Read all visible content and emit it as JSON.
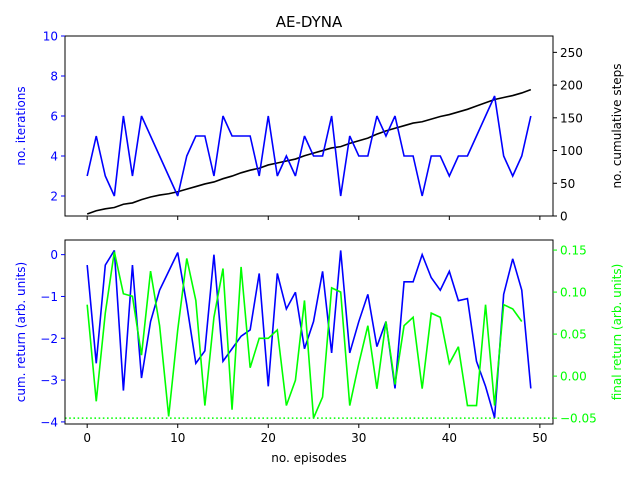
{
  "chart_data": [
    {
      "type": "line",
      "title": "AE-DYNA",
      "xlabel": "",
      "ylabel": "no. iterations",
      "ylabel_right": "no. cumulative steps",
      "xlim": [
        -2.45,
        51.45
      ],
      "ylim": [
        1,
        10
      ],
      "ylim_right": [
        0,
        275
      ],
      "yticks": [
        2,
        4,
        6,
        8,
        10
      ],
      "yticks_right": [
        0,
        50,
        100,
        150,
        200,
        250
      ],
      "grid": false,
      "colors": {
        "left_axis": "#0000ff",
        "right_axis": "#000000"
      },
      "series": [
        {
          "axis": "left",
          "color": "#0000ff",
          "x": [
            0,
            1,
            2,
            3,
            4,
            5,
            6,
            7,
            8,
            9,
            10,
            11,
            12,
            13,
            14,
            15,
            16,
            17,
            18,
            19,
            20,
            21,
            22,
            23,
            24,
            25,
            26,
            27,
            28,
            29,
            30,
            31,
            32,
            33,
            34,
            35,
            36,
            37,
            38,
            39,
            40,
            41,
            42,
            43,
            44,
            45,
            46,
            47,
            48,
            49
          ],
          "values": [
            3,
            5,
            3,
            2,
            6,
            3,
            6,
            5,
            4,
            3,
            2,
            4,
            5,
            5,
            3,
            6,
            5,
            5,
            5,
            3,
            6,
            3,
            4,
            3,
            5,
            4,
            4,
            6,
            2,
            5,
            4,
            4,
            6,
            5,
            6,
            4,
            4,
            2,
            4,
            4,
            3,
            4,
            4,
            5,
            6,
            7,
            4,
            3,
            4,
            6
          ]
        },
        {
          "axis": "right",
          "color": "#000000",
          "x": [
            0,
            1,
            2,
            3,
            4,
            5,
            6,
            7,
            8,
            9,
            10,
            11,
            12,
            13,
            14,
            15,
            16,
            17,
            18,
            19,
            20,
            21,
            22,
            23,
            24,
            25,
            26,
            27,
            28,
            29,
            30,
            31,
            32,
            33,
            34,
            35,
            36,
            37,
            38,
            39,
            40,
            41,
            42,
            43,
            44,
            45,
            46,
            47,
            48,
            49
          ],
          "values": [
            3,
            8,
            11,
            13,
            18,
            20,
            25,
            29,
            32,
            34,
            37,
            41,
            45,
            49,
            52,
            57,
            61,
            66,
            70,
            73,
            78,
            81,
            84,
            87,
            92,
            96,
            100,
            104,
            106,
            111,
            115,
            119,
            125,
            130,
            134,
            138,
            142,
            144,
            148,
            152,
            155,
            159,
            163,
            168,
            173,
            178,
            181,
            184,
            188,
            193
          ]
        }
      ]
    },
    {
      "type": "line",
      "title": "",
      "xlabel": "no. episodes",
      "ylabel": "cum. return (arb. units)",
      "ylabel_right": "final return (arb. units)",
      "xlim": [
        -2.45,
        51.45
      ],
      "xticks": [
        0,
        10,
        20,
        30,
        40,
        50
      ],
      "ylim": [
        -4.05,
        0.35
      ],
      "ylim_right": [
        -0.057,
        0.162
      ],
      "yticks": [
        -4,
        -3,
        -2,
        -1,
        0
      ],
      "yticks_right": [
        -0.05,
        0.0,
        0.05,
        0.1,
        0.15
      ],
      "ytick_labels_right": [
        "−0.05",
        "0.00",
        "0.05",
        "0.10",
        "0.15"
      ],
      "grid": false,
      "colors": {
        "left_axis": "#0000ff",
        "right_axis": "#00ff00"
      },
      "threshold": {
        "axis": "right",
        "value": -0.05,
        "color": "#00ff00",
        "style": "dotted"
      },
      "series": [
        {
          "axis": "left",
          "color": "#0000ff",
          "x": [
            0,
            1,
            2,
            3,
            4,
            5,
            6,
            7,
            8,
            9,
            10,
            11,
            12,
            13,
            14,
            15,
            16,
            17,
            18,
            19,
            20,
            21,
            22,
            23,
            24,
            25,
            26,
            27,
            28,
            29,
            30,
            31,
            32,
            33,
            34,
            35,
            36,
            37,
            38,
            39,
            40,
            41,
            42,
            43,
            44,
            45,
            46,
            47,
            48,
            49
          ],
          "values": [
            -0.25,
            -2.6,
            -0.25,
            0.1,
            -3.25,
            -0.25,
            -2.95,
            -1.6,
            -0.85,
            -0.4,
            0.05,
            -1.2,
            -2.6,
            -2.3,
            0,
            -2.55,
            -2.25,
            -1.95,
            -1.8,
            -0.45,
            -3.15,
            -0.45,
            -1.3,
            -0.9,
            -2.25,
            -1.6,
            -0.4,
            -2.35,
            0.1,
            -2.35,
            -1.6,
            -0.95,
            -2.2,
            -1.6,
            -3.2,
            -0.65,
            -0.65,
            0,
            -0.55,
            -0.85,
            -0.4,
            -1.1,
            -1.05,
            -2.55,
            -3.15,
            -3.9,
            -0.95,
            -0.1,
            -0.85,
            -3.2
          ]
        },
        {
          "axis": "right",
          "color": "#00ff00",
          "x": [
            0,
            1,
            2,
            3,
            4,
            5,
            6,
            7,
            8,
            9,
            10,
            11,
            12,
            13,
            14,
            15,
            16,
            17,
            18,
            19,
            20,
            21,
            22,
            23,
            24,
            25,
            26,
            27,
            28,
            29,
            30,
            31,
            32,
            33,
            34,
            35,
            36,
            37,
            38,
            39,
            40,
            41,
            42,
            43,
            44,
            45,
            46,
            47,
            48,
            49
          ],
          "values": [
            0.085,
            -0.03,
            0.075,
            0.148,
            0.098,
            0.095,
            0.025,
            0.125,
            0.06,
            -0.048,
            0.055,
            0.14,
            0.09,
            -0.035,
            0.07,
            0.128,
            -0.04,
            0.13,
            0.01,
            0.045,
            0.045,
            0.055,
            -0.035,
            -0.005,
            0.09,
            -0.05,
            -0.025,
            0.105,
            0.1,
            -0.035,
            0.015,
            0.06,
            -0.015,
            0.065,
            -0.01,
            0.06,
            0.07,
            -0.015,
            0.075,
            0.07,
            0.015,
            0.035,
            -0.035,
            -0.035,
            0.085,
            -0.035,
            0.085,
            0.08,
            0.065,
            null
          ]
        }
      ]
    }
  ]
}
